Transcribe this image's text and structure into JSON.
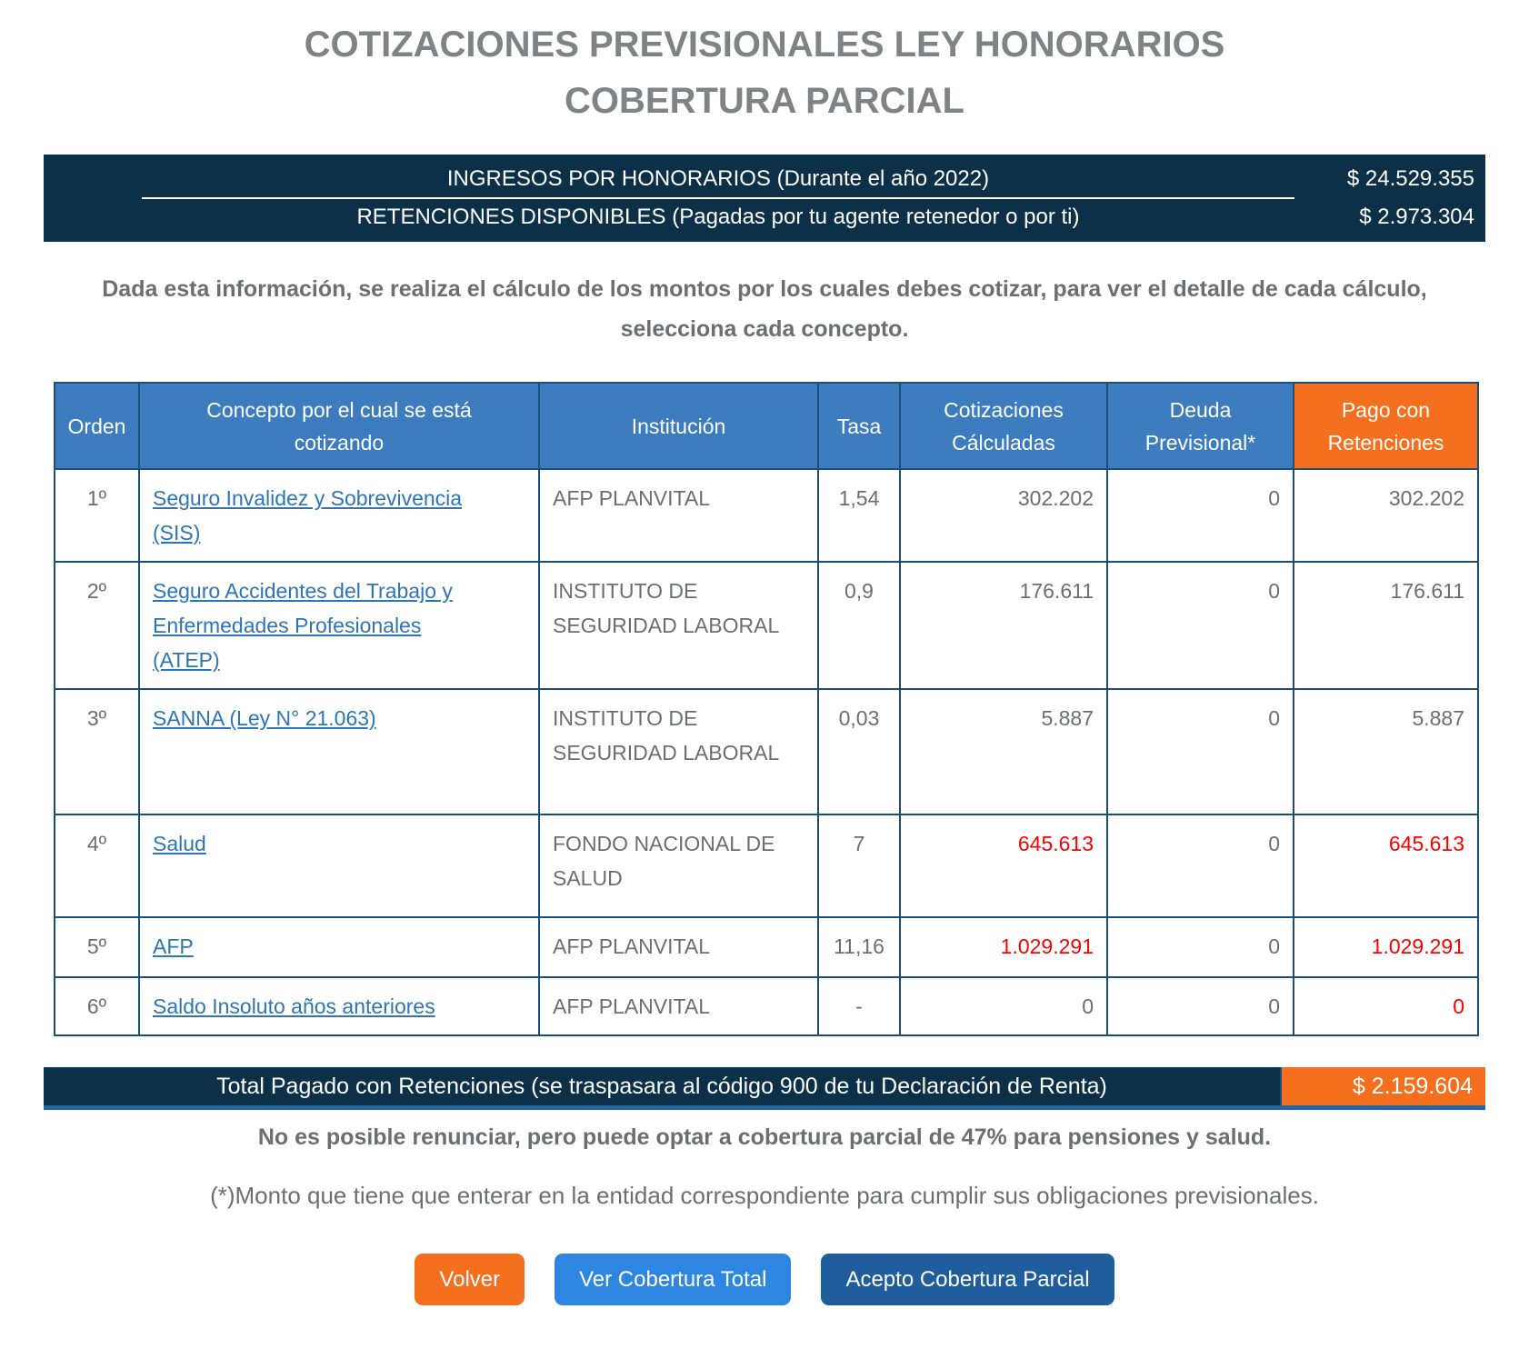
{
  "title": {
    "line1": "COTIZACIONES PREVISIONALES LEY HONORARIOS",
    "line2": "COBERTURA PARCIAL"
  },
  "summary": {
    "rows": [
      {
        "label": "INGRESOS POR HONORARIOS (Durante el año 2022)",
        "value": "$ 24.529.355"
      },
      {
        "label": "RETENCIONES DISPONIBLES (Pagadas por tu agente retenedor o por ti)",
        "value": "$ 2.973.304"
      }
    ]
  },
  "intro_text": "Dada esta información, se realiza el cálculo de los montos por los cuales debes cotizar, para ver el detalle de cada cálculo, selecciona cada concepto.",
  "table": {
    "headers": [
      {
        "name": "orden",
        "label": "Orden"
      },
      {
        "name": "concepto",
        "label": "Concepto por el cual se está cotizando"
      },
      {
        "name": "institucion",
        "label": "Institución"
      },
      {
        "name": "tasa",
        "label": "Tasa"
      },
      {
        "name": "cotizaciones",
        "label": "Cotizaciones Cálculadas"
      },
      {
        "name": "deuda",
        "label": "Deuda Previsional*"
      },
      {
        "name": "pago",
        "label": "Pago con Retenciones"
      }
    ],
    "rows": [
      {
        "orden": "1º",
        "concepto": "Seguro Invalidez y Sobrevivencia (SIS)",
        "institucion": "AFP PLANVITAL",
        "tasa": "1,54",
        "cotizaciones": "302.202",
        "deuda": "0",
        "pago": "302.202",
        "cotizaciones_red": false,
        "pago_red": false
      },
      {
        "orden": "2º",
        "concepto": "Seguro Accidentes del Trabajo y Enfermedades Profesionales (ATEP)",
        "institucion": "INSTITUTO DE SEGURIDAD LABORAL",
        "tasa": "0,9",
        "cotizaciones": "176.611",
        "deuda": "0",
        "pago": "176.611",
        "cotizaciones_red": false,
        "pago_red": false
      },
      {
        "orden": "3º",
        "concepto": "SANNA (Ley N° 21.063)",
        "institucion": "INSTITUTO DE SEGURIDAD LABORAL",
        "tasa": "0,03",
        "cotizaciones": "5.887",
        "deuda": "0",
        "pago": "5.887",
        "cotizaciones_red": false,
        "pago_red": false
      },
      {
        "orden": "4º",
        "concepto": "Salud",
        "institucion": "FONDO NACIONAL DE SALUD",
        "tasa": "7",
        "cotizaciones": "645.613",
        "deuda": "0",
        "pago": "645.613",
        "cotizaciones_red": true,
        "pago_red": true
      },
      {
        "orden": "5º",
        "concepto": "AFP",
        "institucion": "AFP PLANVITAL",
        "tasa": "11,16",
        "cotizaciones": "1.029.291",
        "deuda": "0",
        "pago": "1.029.291",
        "cotizaciones_red": true,
        "pago_red": true
      },
      {
        "orden": "6º",
        "concepto": "Saldo Insoluto años anteriores",
        "institucion": "AFP PLANVITAL",
        "tasa": "-",
        "cotizaciones": "0",
        "deuda": "0",
        "pago": "0",
        "cotizaciones_red": false,
        "pago_red": true
      }
    ]
  },
  "total": {
    "label": "Total Pagado con Retenciones (se traspasara al código 900 de tu Declaración de Renta)",
    "value": "$ 2.159.604"
  },
  "note_bold": "No es posible renunciar, pero puede optar a cobertura parcial de 47% para pensiones y salud.",
  "note_footnote": "(*)Monto que tiene que enterar en la entidad correspondiente para cumplir sus obligaciones previsionales.",
  "buttons": [
    {
      "name": "volver-button",
      "label": "Volver",
      "style": "orange"
    },
    {
      "name": "ver-cobertura-total-button",
      "label": "Ver Cobertura Total",
      "style": "blue"
    },
    {
      "name": "acepto-cobertura-parcial-button",
      "label": "Acepto Cobertura Parcial",
      "style": "darkblue"
    }
  ],
  "colors": {
    "navy": "#0d3049",
    "header_blue": "#3d7cbf",
    "orange": "#f4701f",
    "link_blue": "#2e75b5",
    "text_gray": "#6d6e71",
    "title_gray": "#808285",
    "red": "#fe0000",
    "border_blue": "#1d4e79",
    "button_blue": "#2f86e0",
    "button_dark_blue": "#205d9c",
    "divider_blue": "#2767a0"
  }
}
